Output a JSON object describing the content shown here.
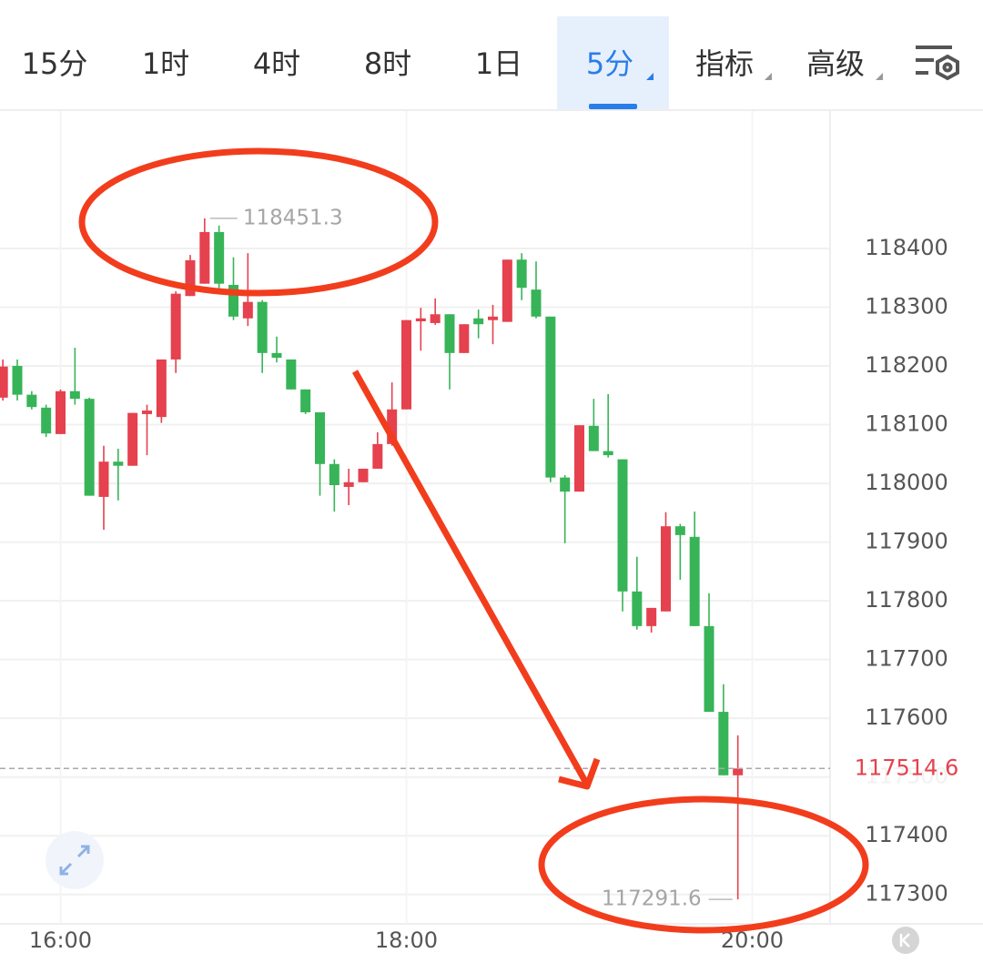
{
  "toolbar": {
    "tabs": [
      "15分",
      "1时",
      "4时",
      "8时",
      "1日",
      "5分",
      "指标",
      "高级"
    ]
  },
  "chart_data": {
    "type": "candlestick",
    "x": [
      "15:40",
      "15:45",
      "15:50",
      "15:55",
      "16:00",
      "16:05",
      "16:10",
      "16:15",
      "16:20",
      "16:25",
      "16:30",
      "16:35",
      "16:40",
      "16:45",
      "16:50",
      "16:55",
      "17:00",
      "17:05",
      "17:10",
      "17:15",
      "17:20",
      "17:25",
      "17:30",
      "17:35",
      "17:40",
      "17:45",
      "17:50",
      "17:55",
      "18:00",
      "18:05",
      "18:10",
      "18:15",
      "18:20",
      "18:25",
      "18:30",
      "18:35",
      "18:40",
      "18:45",
      "18:50",
      "18:55",
      "19:00",
      "19:05",
      "19:10",
      "19:15",
      "19:20",
      "19:25",
      "19:30",
      "19:35",
      "19:40",
      "19:45",
      "19:50",
      "19:55"
    ],
    "open": [
      118146,
      118200,
      118151,
      118129,
      118084,
      118157,
      118144,
      117977,
      118037,
      118030,
      118118,
      118113,
      118211,
      118319,
      118340,
      118428,
      118338,
      118281,
      118309,
      118222,
      118211,
      118160,
      118121,
      118033,
      117994,
      118002,
      118025,
      118067,
      118126,
      118276,
      118273,
      118288,
      118222,
      118281,
      118278,
      118275,
      118381,
      118330,
      118284,
      118010,
      117986,
      118098,
      118055,
      118041,
      117816,
      117757,
      117782,
      117927,
      117909,
      117757,
      117611,
      117503
    ],
    "high": [
      118211,
      118211,
      118157,
      118134,
      118160,
      118231,
      118146,
      118064,
      118059,
      118120,
      118134,
      118211,
      118327,
      118389,
      118451.3,
      118439,
      118385,
      118392,
      118312,
      118250,
      118211,
      118160,
      118121,
      118041,
      118025,
      118025,
      118087,
      118172,
      118278,
      118299,
      118315,
      118288,
      118271,
      118296,
      118304,
      118381,
      118392,
      118378,
      118284,
      118014,
      118099,
      118144,
      118152,
      118041,
      117875,
      117788,
      117951,
      117931,
      117952,
      117813,
      117658,
      117571
    ],
    "low": [
      118141,
      118141,
      118126,
      118079,
      118084,
      118134,
      117979,
      117921,
      117971,
      118030,
      118048,
      118103,
      118188,
      118319,
      118340,
      118327,
      118278,
      118268,
      118188,
      118206,
      118160,
      118118,
      117979,
      117952,
      117963,
      118002,
      118025,
      118064,
      118126,
      118226,
      118270,
      118160,
      118222,
      118247,
      118237,
      118275,
      118312,
      118281,
      118002,
      117898,
      117986,
      118055,
      118044,
      117782,
      117751,
      117746,
      117782,
      117836,
      117757,
      117611,
      117503,
      117291.6
    ],
    "close": [
      118199,
      118151,
      118130,
      118085,
      118157,
      118144,
      117979,
      118037,
      118030,
      118120,
      118124,
      118211,
      118323,
      118380,
      118428,
      118340,
      118284,
      118309,
      118222,
      118214,
      118160,
      118121,
      118033,
      117997,
      118002,
      118025,
      118067,
      118126,
      118278,
      118281,
      118288,
      118222,
      118271,
      118271,
      118284,
      118381,
      118333,
      118284,
      118010,
      117986,
      118099,
      118055,
      118048,
      117816,
      117757,
      117788,
      117927,
      117912,
      117757,
      117611,
      117503,
      117514.6
    ],
    "up_color": "#e5414e",
    "down_color": "#37b458",
    "xlim": [
      "15:39",
      "20:27"
    ],
    "xticks": [
      "16:00",
      "18:00",
      "20:00"
    ],
    "ylim": [
      117250,
      118634
    ],
    "yticks": [
      117300,
      117400,
      117500,
      117600,
      117700,
      117800,
      117900,
      118000,
      118100,
      118200,
      118300,
      118400
    ],
    "grid": true
  }
}
